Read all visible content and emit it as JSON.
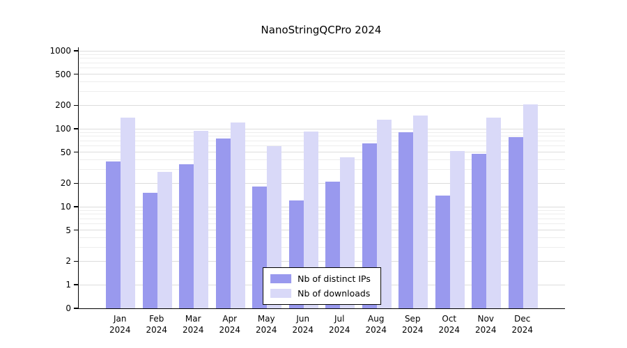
{
  "chart_data": {
    "type": "bar",
    "title": "NanoStringQCPro 2024",
    "categories": [
      "Jan",
      "Feb",
      "Mar",
      "Apr",
      "May",
      "Jun",
      "Jul",
      "Aug",
      "Sep",
      "Oct",
      "Nov",
      "Dec"
    ],
    "year_label": "2024",
    "series": [
      {
        "name": "Nb of distinct IPs",
        "color": "#9999ee",
        "values": [
          38,
          15,
          35,
          75,
          18,
          12,
          21,
          65,
          90,
          14,
          48,
          78
        ]
      },
      {
        "name": "Nb of downloads",
        "color": "#d9d9f8",
        "values": [
          140,
          28,
          95,
          120,
          60,
          92,
          43,
          130,
          148,
          52,
          138,
          205
        ]
      }
    ],
    "yticks": [
      0,
      1,
      2,
      5,
      10,
      20,
      50,
      100,
      200,
      500,
      1000
    ],
    "ylim": [
      0,
      1000
    ],
    "yscale": "log",
    "xlabel": "",
    "ylabel": "",
    "grid": "horizontal",
    "grid_color": "#dcdcdc",
    "legend_position": "bottom-center"
  }
}
